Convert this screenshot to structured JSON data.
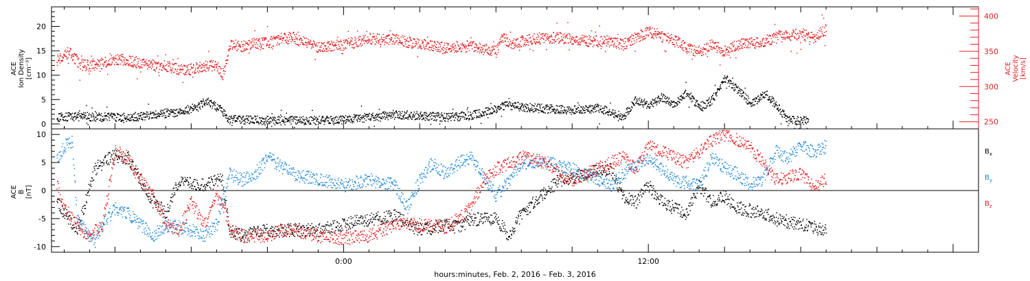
{
  "chart_data": [
    {
      "type": "scatter",
      "panel": "top",
      "left_axis": {
        "label_lines": [
          "ACE",
          "Ion Density",
          "[cm⁻³]"
        ],
        "ylim": [
          -1,
          24
        ],
        "ticks": [
          0,
          5,
          10,
          15,
          20
        ],
        "color": "#000000"
      },
      "right_axis": {
        "label_lines": [
          "ACE",
          "Velocity",
          "[km/s]"
        ],
        "ylim": [
          240,
          413
        ],
        "ticks": [
          250,
          300,
          350,
          400
        ],
        "color": "#e31a1c"
      },
      "series": [
        {
          "axis": "left",
          "color": "#000000",
          "x": [
            -11.3,
            -10.5,
            -9.5,
            -8.5,
            -7.5,
            -6.5,
            -5.8,
            -5.4,
            -4.9,
            -4.7,
            -4.6,
            -4.5,
            -4.0,
            -3.0,
            -2.0,
            -1.0,
            0,
            1.0,
            2.0,
            3.0,
            4.0,
            5.0,
            6.5,
            7.0,
            8.0,
            9.0,
            10.0,
            10.5,
            11.0,
            11.5,
            12.0,
            12.5,
            13.0,
            13.5,
            14.0,
            14.5,
            15.0,
            15.5,
            16.0,
            16.3,
            16.6,
            17.5,
            18.3
          ],
          "y": [
            1.5,
            1.6,
            1.5,
            1.4,
            2.0,
            2.5,
            3.5,
            4.8,
            3.2,
            2.2,
            1.5,
            1.0,
            0.9,
            0.8,
            0.8,
            0.8,
            0.9,
            1.5,
            2.0,
            1.8,
            1.5,
            1.8,
            4.0,
            3.5,
            3.2,
            3.0,
            3.3,
            2.5,
            1.5,
            5.0,
            4.0,
            5.5,
            4.2,
            6.5,
            3.5,
            5.0,
            9.5,
            7.0,
            4.5,
            5.0,
            6.5,
            0.8,
            0.8
          ]
        },
        {
          "axis": "right",
          "color": "#e31a1c",
          "x": [
            -11.3,
            -10.8,
            -10.4,
            -10.0,
            -9.5,
            -9.0,
            -8.5,
            -8.0,
            -7.5,
            -7.0,
            -6.5,
            -6.0,
            -5.5,
            -5.0,
            -4.8,
            -4.6,
            -4.5,
            -4.0,
            -3.5,
            -3.0,
            -2.5,
            -2.0,
            -1.5,
            -1.0,
            -0.5,
            0,
            1.0,
            2.0,
            3.0,
            4.0,
            5.0,
            6.0,
            6.2,
            6.6,
            7.5,
            8.5,
            9.5,
            10.5,
            11.0,
            11.5,
            12.0,
            12.5,
            13.0,
            13.5,
            14.0,
            14.5,
            15.0,
            15.5,
            16.0,
            16.5,
            17.0,
            17.5,
            18.0,
            18.5,
            19.0
          ],
          "y": [
            337,
            350,
            332,
            330,
            333,
            340,
            338,
            333,
            330,
            330,
            325,
            325,
            330,
            330,
            318,
            338,
            360,
            358,
            362,
            362,
            368,
            370,
            362,
            355,
            358,
            360,
            368,
            368,
            360,
            355,
            358,
            350,
            370,
            362,
            368,
            370,
            365,
            365,
            360,
            370,
            378,
            372,
            368,
            355,
            350,
            360,
            350,
            360,
            362,
            364,
            370,
            373,
            375,
            370,
            382
          ]
        }
      ]
    },
    {
      "type": "scatter",
      "panel": "bottom",
      "left_axis": {
        "label_lines": [
          "ACE",
          "B",
          "[nT]"
        ],
        "ylim": [
          -11,
          11
        ],
        "ticks": [
          -10,
          -5,
          0,
          5,
          10
        ]
      },
      "zero_line": true,
      "series": [
        {
          "name": "Bx",
          "color": "#000000",
          "x": [
            -11.3,
            -11.0,
            -10.5,
            -9.8,
            -9.2,
            -8.5,
            -7.5,
            -7.0,
            -6.5,
            -5.5,
            -4.8,
            -4.5,
            -4.0,
            -3.0,
            -2.0,
            -1.0,
            0,
            1.0,
            2.0,
            3.0,
            4.0,
            4.5,
            5.0,
            6.0,
            6.5,
            7.0,
            7.5,
            8.5,
            9.5,
            10.5,
            11.0,
            11.5,
            12.0,
            12.5,
            13.0,
            13.5,
            14.0,
            14.5,
            15.0,
            15.5,
            16.0,
            16.5,
            17.0,
            18.0,
            19.0
          ],
          "y": [
            -2,
            -4,
            -7,
            4,
            6,
            6,
            -2,
            -4,
            2,
            1,
            2,
            -7,
            -8,
            -7,
            -7,
            -7,
            -6,
            -5,
            -4.5,
            -7,
            -6,
            -6.5,
            -5,
            -5,
            -8,
            -4,
            -2,
            2,
            3,
            4,
            -1,
            -2,
            1,
            -2,
            -3,
            -4,
            1,
            -2,
            -1,
            -3,
            -3.5,
            -4,
            -5,
            -6,
            -7
          ]
        },
        {
          "name": "By",
          "color": "#1a84d6",
          "x": [
            -11.3,
            -11.0,
            -10.7,
            -10.5,
            -10.2,
            -9.8,
            -9.5,
            -9.0,
            -8.5,
            -8.0,
            -7.5,
            -7.0,
            -6.0,
            -5.5,
            -5.0,
            -4.5,
            -4.0,
            -3.5,
            -3.0,
            -2.0,
            -1.0,
            0,
            1.0,
            2.0,
            2.5,
            3.0,
            3.5,
            4.0,
            4.5,
            5.0,
            6.0,
            6.5,
            7.0,
            8.0,
            9.0,
            10.0,
            10.5,
            11.0,
            12.0,
            13.0,
            14.0,
            14.5,
            15.0,
            15.5,
            16.0,
            16.5,
            17.0,
            17.5,
            18.0,
            18.5,
            19.0
          ],
          "y": [
            6,
            8,
            9,
            -5,
            -7,
            -9,
            -6,
            -3,
            -4,
            -6,
            -8,
            -6,
            -7,
            -8,
            -6,
            3,
            2,
            3,
            6,
            3,
            2,
            1,
            2,
            1,
            -3,
            2,
            5,
            3,
            5,
            6,
            -1,
            2,
            5,
            5,
            4,
            2,
            1,
            3,
            6,
            2,
            1,
            6,
            4,
            3,
            1,
            2,
            7,
            6,
            8,
            7,
            8
          ]
        },
        {
          "name": "Bz",
          "color": "#e31a1c",
          "x": [
            -11.3,
            -11.0,
            -10.7,
            -10.3,
            -10.0,
            -9.5,
            -9.0,
            -8.5,
            -8.2,
            -8.0,
            -7.5,
            -7.0,
            -6.5,
            -6.0,
            -5.5,
            -5.0,
            -4.7,
            -4.5,
            -4.0,
            -3.5,
            -3.0,
            -2.5,
            -2.0,
            -1.5,
            -1.0,
            0,
            1.0,
            2.0,
            3.0,
            4.0,
            4.5,
            5.0,
            5.5,
            6.0,
            7.0,
            8.0,
            8.5,
            9.0,
            10.0,
            11.0,
            11.5,
            12.0,
            12.5,
            13.0,
            13.5,
            14.0,
            14.5,
            15.0,
            16.0,
            16.5,
            17.0,
            18.0,
            18.5,
            19.0
          ],
          "y": [
            1,
            -3,
            -5,
            -7,
            -8,
            -6,
            7,
            6,
            3,
            2,
            -1,
            -6,
            -7,
            -2,
            -6,
            -1,
            -3,
            -7,
            -8,
            -8,
            -8,
            -7,
            -7,
            -7.5,
            -8,
            -8.5,
            -8,
            -6,
            -6,
            -6.5,
            -5,
            -3,
            2,
            4,
            6,
            5,
            3,
            2,
            4,
            6,
            4,
            8,
            7,
            6,
            5,
            7,
            9,
            10,
            8,
            5,
            2,
            3,
            1,
            2
          ]
        }
      ]
    }
  ],
  "x_axis": {
    "xlim": [
      -11.5,
      25
    ],
    "tick_labels": [
      {
        "x": 0,
        "label": "0:00"
      },
      {
        "x": 12,
        "label": "12:00"
      }
    ],
    "title": "hours:minutes, Feb.  2, 2016 – Feb.  3, 2016"
  },
  "legend": [
    {
      "label": "B",
      "sub": "x",
      "color": "#000000"
    },
    {
      "label": "B",
      "sub": "y",
      "color": "#1a84d6"
    },
    {
      "label": "B",
      "sub": "z",
      "color": "#e31a1c"
    }
  ]
}
